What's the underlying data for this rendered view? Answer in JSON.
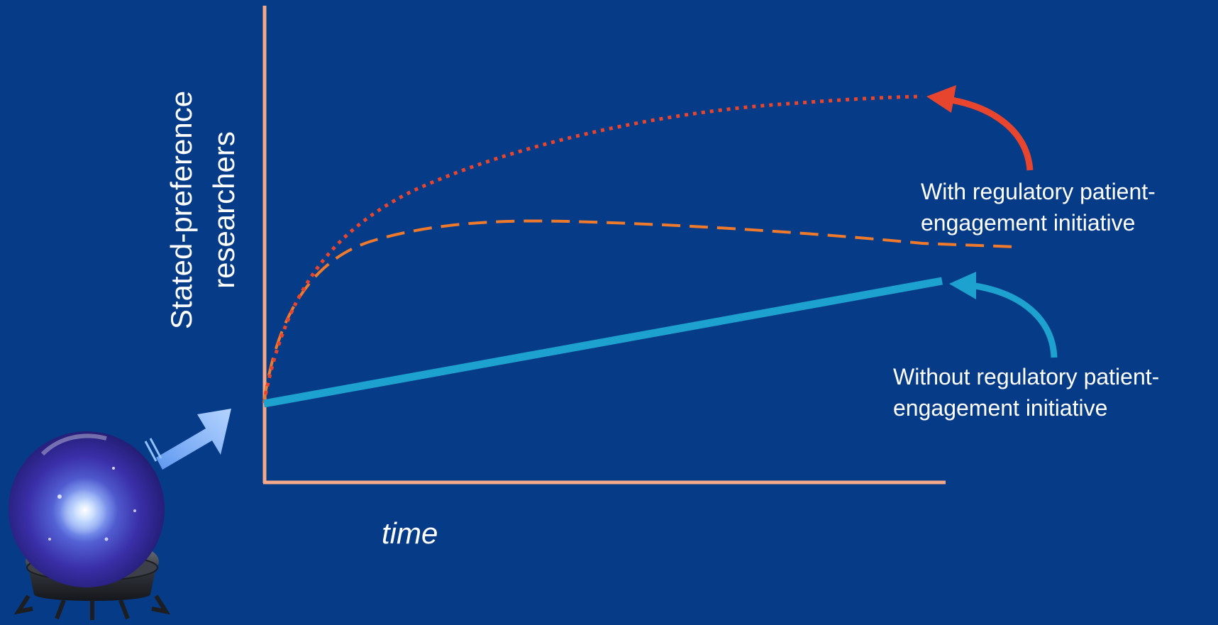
{
  "diagram": {
    "y_axis_label": "Stated-preference researchers",
    "x_axis_label": "time",
    "annotations": {
      "with_initiative": "With regulatory patient-engagement initiative",
      "without_initiative": "Without regulatory patient-engagement initiative"
    },
    "colors": {
      "background": "#063b87",
      "axes": "#f3a98a",
      "with_initiative": "#e8452e",
      "dashed_projection": "#ef7a2c",
      "without_initiative": "#1da1cf",
      "forecast_arrow": "#8fc1ff"
    },
    "icons": [
      "crystal-ball-icon",
      "forecast-arrow-icon"
    ]
  }
}
